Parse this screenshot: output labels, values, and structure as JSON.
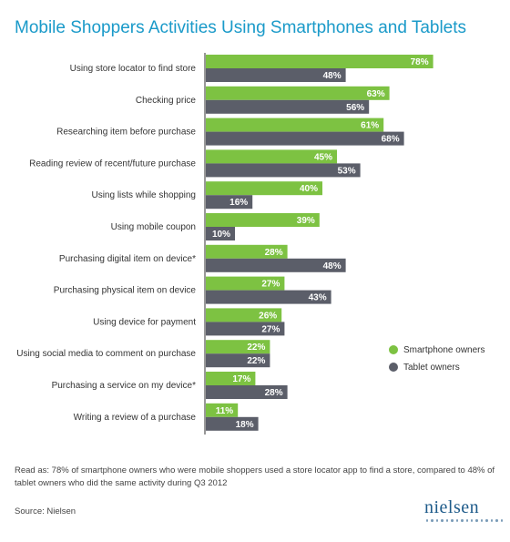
{
  "chart_data": {
    "type": "bar",
    "orientation": "horizontal",
    "title": "Mobile Shoppers Activities Using Smartphones and Tablets",
    "categories": [
      "Using store locator to find store",
      "Checking price",
      "Researching item before purchase",
      "Reading review of recent/future purchase",
      "Using lists while shopping",
      "Using mobile coupon",
      "Purchasing digital item on device*",
      "Purchasing physical item on device",
      "Using device for payment",
      "Using social media to comment on purchase",
      "Purchasing a service on my device*",
      "Writing a review of a purchase"
    ],
    "series": [
      {
        "name": "Smartphone owners",
        "color": "#7dc242",
        "values": [
          78,
          63,
          61,
          45,
          40,
          39,
          28,
          27,
          26,
          22,
          17,
          11
        ]
      },
      {
        "name": "Tablet owners",
        "color": "#5b5e69",
        "values": [
          48,
          56,
          68,
          53,
          16,
          10,
          48,
          43,
          27,
          22,
          28,
          18
        ]
      }
    ],
    "value_suffix": "%",
    "xlim": [
      0,
      100
    ],
    "grid": false,
    "legend_position": "right"
  },
  "note": "Read as: 78% of smartphone owners who were mobile shoppers used a store locator app to find a store, compared to 48% of tablet owners who did the same activity during Q3 2012",
  "source": "Source: Nielsen",
  "logo": {
    "text": "nielsen",
    "color": "#1e5b8a"
  },
  "colors": {
    "title": "#1a9ac9",
    "axis": "#333333"
  }
}
